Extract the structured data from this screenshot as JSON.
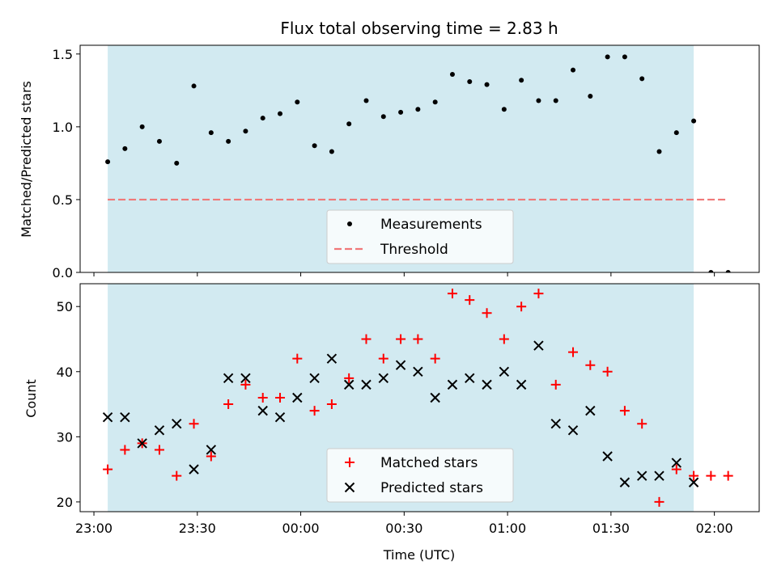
{
  "chart_data": [
    {
      "type": "scatter",
      "title": "Flux total observing time = 2.83 h",
      "xlabel": "",
      "ylabel": "Matched/Predicted stars",
      "xlim": [
        "22:56",
        "02:13"
      ],
      "ylim": [
        0,
        1.56
      ],
      "yticks": [
        0.0,
        0.5,
        1.0,
        1.5
      ],
      "ytick_labels": [
        "0.0",
        "0.5",
        "1.0",
        "1.5"
      ],
      "shaded_span": [
        "23:04",
        "01:54"
      ],
      "shade_color": "#add8e6",
      "grid": false,
      "legend_position": "lower center",
      "series": [
        {
          "name": "Measurements",
          "marker": "dot",
          "color": "#000000",
          "x": [
            "23:04",
            "23:09",
            "23:14",
            "23:19",
            "23:24",
            "23:29",
            "23:34",
            "23:39",
            "23:44",
            "23:49",
            "23:54",
            "23:59",
            "00:04",
            "00:09",
            "00:14",
            "00:19",
            "00:24",
            "00:29",
            "00:34",
            "00:39",
            "00:44",
            "00:49",
            "00:54",
            "00:59",
            "01:04",
            "01:09",
            "01:14",
            "01:19",
            "01:24",
            "01:29",
            "01:34",
            "01:39",
            "01:44",
            "01:49",
            "01:54",
            "01:59",
            "02:04"
          ],
          "y": [
            0.76,
            0.85,
            1.0,
            0.9,
            0.75,
            1.28,
            0.96,
            0.9,
            0.97,
            1.06,
            1.09,
            1.17,
            0.87,
            0.83,
            1.02,
            1.18,
            1.07,
            1.1,
            1.12,
            1.17,
            1.36,
            1.31,
            1.29,
            1.12,
            1.32,
            1.18,
            1.18,
            1.39,
            1.21,
            1.48,
            1.48,
            1.33,
            0.83,
            0.96,
            1.04,
            0.0,
            0.0
          ]
        },
        {
          "name": "Threshold",
          "marker": "dashed-line",
          "color": "#f07878",
          "x": [
            "23:04",
            "02:04"
          ],
          "y": [
            0.5,
            0.5
          ]
        }
      ]
    },
    {
      "type": "scatter",
      "title": "",
      "xlabel": "Time (UTC)",
      "ylabel": "Count",
      "xlim": [
        "22:56",
        "02:13"
      ],
      "ylim": [
        18.5,
        53.5
      ],
      "yticks": [
        20,
        30,
        40,
        50
      ],
      "ytick_labels": [
        "20",
        "30",
        "40",
        "50"
      ],
      "xticks": [
        "23:00",
        "23:30",
        "00:00",
        "00:30",
        "01:00",
        "01:30",
        "02:00"
      ],
      "xtick_labels": [
        "23:00",
        "23:30",
        "00:00",
        "00:30",
        "01:00",
        "01:30",
        "02:00"
      ],
      "shaded_span": [
        "23:04",
        "01:54"
      ],
      "shade_color": "#add8e6",
      "grid": false,
      "legend_position": "lower center",
      "series": [
        {
          "name": "Matched stars",
          "marker": "plus",
          "color": "#ff0000",
          "x": [
            "23:04",
            "23:09",
            "23:14",
            "23:19",
            "23:24",
            "23:29",
            "23:34",
            "23:39",
            "23:44",
            "23:49",
            "23:54",
            "23:59",
            "00:04",
            "00:09",
            "00:14",
            "00:19",
            "00:24",
            "00:29",
            "00:34",
            "00:39",
            "00:44",
            "00:49",
            "00:54",
            "00:59",
            "01:04",
            "01:09",
            "01:14",
            "01:19",
            "01:24",
            "01:29",
            "01:34",
            "01:39",
            "01:44",
            "01:49",
            "01:54",
            "01:59",
            "02:04"
          ],
          "y": [
            25,
            28,
            29,
            28,
            24,
            32,
            27,
            35,
            38,
            36,
            36,
            42,
            34,
            35,
            39,
            45,
            42,
            45,
            45,
            42,
            52,
            51,
            49,
            45,
            50,
            52,
            38,
            43,
            41,
            40,
            34,
            32,
            20,
            25,
            24,
            24,
            24
          ]
        },
        {
          "name": "Predicted stars",
          "marker": "x",
          "color": "#000000",
          "x": [
            "23:04",
            "23:09",
            "23:14",
            "23:19",
            "23:24",
            "23:29",
            "23:34",
            "23:39",
            "23:44",
            "23:49",
            "23:54",
            "23:59",
            "00:04",
            "00:09",
            "00:14",
            "00:19",
            "00:24",
            "00:29",
            "00:34",
            "00:39",
            "00:44",
            "00:49",
            "00:54",
            "00:59",
            "01:04",
            "01:09",
            "01:14",
            "01:19",
            "01:24",
            "01:29",
            "01:34",
            "01:39",
            "01:44",
            "01:49",
            "01:54"
          ],
          "y": [
            33,
            33,
            29,
            31,
            32,
            25,
            28,
            39,
            39,
            34,
            33,
            36,
            39,
            42,
            38,
            38,
            39,
            41,
            40,
            36,
            38,
            39,
            38,
            40,
            38,
            44,
            32,
            31,
            34,
            27,
            23,
            24,
            24,
            26,
            23
          ]
        }
      ]
    }
  ]
}
